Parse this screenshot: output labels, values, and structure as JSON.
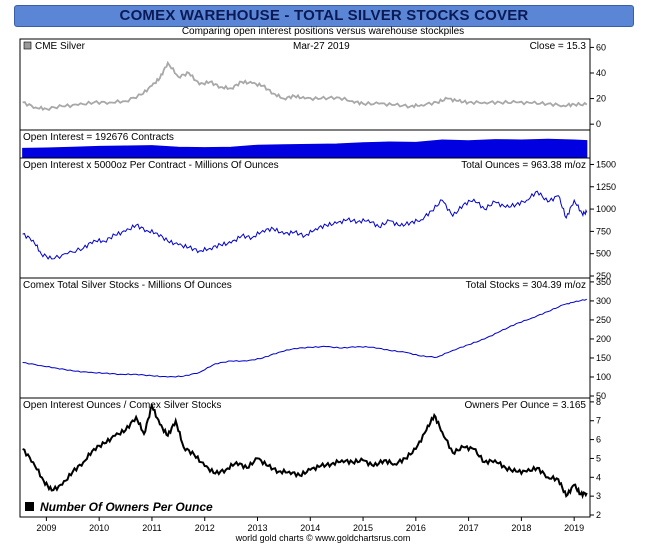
{
  "header": {
    "title": "COMEX WAREHOUSE - TOTAL SILVER STOCKS COVER",
    "subtitle": "Comparing open interest positions versus warehouse stockpiles",
    "footer": "world gold charts © www.goldchartsrus.com"
  },
  "chart_data": [
    {
      "type": "line",
      "panel": "silver-price",
      "legend": "CME Silver",
      "date_label": "Mar-27  2019",
      "close_label": "Close = 15.3",
      "y_ticks": [
        0,
        20,
        40,
        60
      ],
      "ylim": [
        -3,
        65
      ],
      "x_ticks": [
        "2009",
        "2010",
        "2011",
        "2012",
        "2013",
        "2014",
        "2015",
        "2016",
        "2017",
        "2018",
        "2019"
      ],
      "series": [
        {
          "color": "#a8a8a8",
          "points": [
            [
              2008.55,
              17
            ],
            [
              2008.8,
              13
            ],
            [
              2009.0,
              12
            ],
            [
              2009.3,
              14
            ],
            [
              2009.6,
              15
            ],
            [
              2009.9,
              17
            ],
            [
              2010.2,
              17
            ],
            [
              2010.5,
              18
            ],
            [
              2010.8,
              23
            ],
            [
              2011.0,
              30
            ],
            [
              2011.15,
              36
            ],
            [
              2011.3,
              48
            ],
            [
              2011.5,
              37
            ],
            [
              2011.7,
              40
            ],
            [
              2011.9,
              31
            ],
            [
              2012.1,
              33
            ],
            [
              2012.3,
              29
            ],
            [
              2012.5,
              28
            ],
            [
              2012.7,
              33
            ],
            [
              2012.9,
              32
            ],
            [
              2013.1,
              30
            ],
            [
              2013.3,
              24
            ],
            [
              2013.5,
              20
            ],
            [
              2013.7,
              22
            ],
            [
              2013.9,
              20
            ],
            [
              2014.2,
              20
            ],
            [
              2014.5,
              21
            ],
            [
              2014.8,
              18
            ],
            [
              2015.0,
              16
            ],
            [
              2015.3,
              16
            ],
            [
              2015.6,
              15
            ],
            [
              2015.9,
              14
            ],
            [
              2016.1,
              15
            ],
            [
              2016.4,
              17
            ],
            [
              2016.6,
              20
            ],
            [
              2016.8,
              18
            ],
            [
              2017.0,
              17
            ],
            [
              2017.3,
              17
            ],
            [
              2017.6,
              17
            ],
            [
              2017.9,
              17
            ],
            [
              2018.2,
              16.5
            ],
            [
              2018.5,
              16
            ],
            [
              2018.8,
              14.5
            ],
            [
              2019.0,
              15.5
            ],
            [
              2019.24,
              15.3
            ]
          ]
        }
      ]
    },
    {
      "type": "area",
      "panel": "open-interest",
      "label": "Open Interest = 192676 Contracts",
      "ylim": [
        0,
        300000
      ],
      "series": [
        {
          "color": "#0000e0",
          "points": [
            [
              2008.55,
              95000
            ],
            [
              2009.0,
              100000
            ],
            [
              2009.5,
              110000
            ],
            [
              2010.0,
              120000
            ],
            [
              2010.5,
              125000
            ],
            [
              2011.0,
              130000
            ],
            [
              2011.5,
              110000
            ],
            [
              2012.0,
              105000
            ],
            [
              2012.5,
              110000
            ],
            [
              2013.0,
              135000
            ],
            [
              2013.5,
              140000
            ],
            [
              2014.0,
              145000
            ],
            [
              2014.5,
              150000
            ],
            [
              2015.0,
              165000
            ],
            [
              2015.5,
              175000
            ],
            [
              2016.0,
              170000
            ],
            [
              2016.5,
              200000
            ],
            [
              2017.0,
              190000
            ],
            [
              2017.5,
              205000
            ],
            [
              2018.0,
              200000
            ],
            [
              2018.5,
              210000
            ],
            [
              2019.0,
              200000
            ],
            [
              2019.24,
              192676
            ]
          ]
        }
      ]
    },
    {
      "type": "line",
      "panel": "open-interest-ounces",
      "label": "Open Interest x 5000oz Per Contract - Millions Of Ounces",
      "total_label": "Total Ounces = 963.38 m/oz",
      "y_ticks": [
        250,
        500,
        750,
        1000,
        1250,
        1500
      ],
      "ylim": [
        250,
        1550
      ],
      "series": [
        {
          "color": "#0000cc",
          "points": [
            [
              2008.55,
              720
            ],
            [
              2008.75,
              650
            ],
            [
              2008.9,
              500
            ],
            [
              2009.1,
              440
            ],
            [
              2009.4,
              500
            ],
            [
              2009.7,
              560
            ],
            [
              2009.9,
              650
            ],
            [
              2010.1,
              640
            ],
            [
              2010.3,
              710
            ],
            [
              2010.5,
              750
            ],
            [
              2010.7,
              820
            ],
            [
              2010.9,
              760
            ],
            [
              2011.1,
              730
            ],
            [
              2011.3,
              640
            ],
            [
              2011.5,
              600
            ],
            [
              2011.7,
              570
            ],
            [
              2011.9,
              530
            ],
            [
              2012.1,
              560
            ],
            [
              2012.3,
              600
            ],
            [
              2012.5,
              620
            ],
            [
              2012.7,
              700
            ],
            [
              2012.9,
              680
            ],
            [
              2013.1,
              760
            ],
            [
              2013.3,
              780
            ],
            [
              2013.5,
              720
            ],
            [
              2013.7,
              740
            ],
            [
              2013.9,
              700
            ],
            [
              2014.1,
              780
            ],
            [
              2014.3,
              820
            ],
            [
              2014.5,
              840
            ],
            [
              2014.7,
              880
            ],
            [
              2014.9,
              860
            ],
            [
              2015.1,
              880
            ],
            [
              2015.3,
              800
            ],
            [
              2015.5,
              870
            ],
            [
              2015.7,
              810
            ],
            [
              2015.9,
              850
            ],
            [
              2016.1,
              880
            ],
            [
              2016.3,
              980
            ],
            [
              2016.5,
              1100
            ],
            [
              2016.7,
              920
            ],
            [
              2016.9,
              1050
            ],
            [
              2017.1,
              1110
            ],
            [
              2017.3,
              1000
            ],
            [
              2017.5,
              1080
            ],
            [
              2017.7,
              1020
            ],
            [
              2017.9,
              1050
            ],
            [
              2018.1,
              1100
            ],
            [
              2018.3,
              1200
            ],
            [
              2018.5,
              1080
            ],
            [
              2018.7,
              1150
            ],
            [
              2018.85,
              900
            ],
            [
              2019.0,
              1100
            ],
            [
              2019.15,
              950
            ],
            [
              2019.24,
              963
            ]
          ]
        }
      ]
    },
    {
      "type": "line",
      "panel": "silver-stocks",
      "label": "Comex Total Silver Stocks - Millions Of Ounces",
      "total_label": "Total Stocks = 304.39 m/oz",
      "y_ticks": [
        50,
        100,
        150,
        200,
        250,
        300,
        350
      ],
      "ylim": [
        50,
        355
      ],
      "series": [
        {
          "color": "#0000cc",
          "points": [
            [
              2008.55,
              138
            ],
            [
              2008.9,
              130
            ],
            [
              2009.2,
              123
            ],
            [
              2009.5,
              116
            ],
            [
              2009.8,
              112
            ],
            [
              2010.1,
              110
            ],
            [
              2010.4,
              107
            ],
            [
              2010.7,
              107
            ],
            [
              2011.0,
              103
            ],
            [
              2011.3,
              100
            ],
            [
              2011.6,
              102
            ],
            [
              2011.9,
              112
            ],
            [
              2012.2,
              135
            ],
            [
              2012.5,
              142
            ],
            [
              2012.8,
              142
            ],
            [
              2013.1,
              150
            ],
            [
              2013.4,
              165
            ],
            [
              2013.7,
              175
            ],
            [
              2014.0,
              178
            ],
            [
              2014.3,
              180
            ],
            [
              2014.6,
              176
            ],
            [
              2014.9,
              180
            ],
            [
              2015.2,
              178
            ],
            [
              2015.5,
              170
            ],
            [
              2015.8,
              165
            ],
            [
              2016.1,
              155
            ],
            [
              2016.4,
              152
            ],
            [
              2016.7,
              170
            ],
            [
              2017.0,
              185
            ],
            [
              2017.3,
              200
            ],
            [
              2017.6,
              220
            ],
            [
              2017.9,
              240
            ],
            [
              2018.2,
              255
            ],
            [
              2018.5,
              272
            ],
            [
              2018.8,
              290
            ],
            [
              2019.0,
              297
            ],
            [
              2019.24,
              304.39
            ]
          ]
        }
      ]
    },
    {
      "type": "line",
      "panel": "owners-per-ounce",
      "label": "Open Interest Ounces / Comex Silver Stocks",
      "total_label": "Owners Per Ounce = 3.165",
      "legend": "Number Of Owners Per Ounce",
      "y_ticks": [
        2,
        3,
        4,
        5,
        6,
        7,
        8
      ],
      "ylim": [
        2,
        8.1
      ],
      "series": [
        {
          "color": "#000000",
          "points": [
            [
              2008.55,
              5.5
            ],
            [
              2008.75,
              4.8
            ],
            [
              2008.95,
              3.8
            ],
            [
              2009.1,
              3.3
            ],
            [
              2009.3,
              3.6
            ],
            [
              2009.5,
              4.3
            ],
            [
              2009.7,
              4.8
            ],
            [
              2009.9,
              5.5
            ],
            [
              2010.1,
              5.8
            ],
            [
              2010.3,
              6.2
            ],
            [
              2010.5,
              6.5
            ],
            [
              2010.7,
              7.2
            ],
            [
              2010.85,
              6.3
            ],
            [
              2011.0,
              7.8
            ],
            [
              2011.15,
              6.8
            ],
            [
              2011.3,
              6.2
            ],
            [
              2011.45,
              7.0
            ],
            [
              2011.6,
              5.6
            ],
            [
              2011.8,
              5.2
            ],
            [
              2012.0,
              4.6
            ],
            [
              2012.2,
              4.2
            ],
            [
              2012.4,
              4.4
            ],
            [
              2012.6,
              4.8
            ],
            [
              2012.8,
              4.5
            ],
            [
              2013.0,
              5.0
            ],
            [
              2013.2,
              4.6
            ],
            [
              2013.4,
              4.3
            ],
            [
              2013.6,
              4.3
            ],
            [
              2013.8,
              4.1
            ],
            [
              2014.0,
              4.4
            ],
            [
              2014.2,
              4.6
            ],
            [
              2014.4,
              4.7
            ],
            [
              2014.6,
              4.9
            ],
            [
              2014.8,
              4.8
            ],
            [
              2015.0,
              4.9
            ],
            [
              2015.2,
              4.6
            ],
            [
              2015.4,
              4.9
            ],
            [
              2015.6,
              4.7
            ],
            [
              2015.8,
              5.0
            ],
            [
              2016.0,
              5.5
            ],
            [
              2016.2,
              6.5
            ],
            [
              2016.35,
              7.3
            ],
            [
              2016.5,
              6.4
            ],
            [
              2016.7,
              5.3
            ],
            [
              2016.9,
              5.6
            ],
            [
              2017.1,
              5.5
            ],
            [
              2017.3,
              4.8
            ],
            [
              2017.5,
              4.9
            ],
            [
              2017.7,
              4.5
            ],
            [
              2017.9,
              4.3
            ],
            [
              2018.1,
              4.3
            ],
            [
              2018.3,
              4.5
            ],
            [
              2018.5,
              4.0
            ],
            [
              2018.7,
              3.9
            ],
            [
              2018.85,
              3.0
            ],
            [
              2019.0,
              3.6
            ],
            [
              2019.12,
              3.1
            ],
            [
              2019.24,
              3.165
            ]
          ]
        }
      ]
    }
  ]
}
